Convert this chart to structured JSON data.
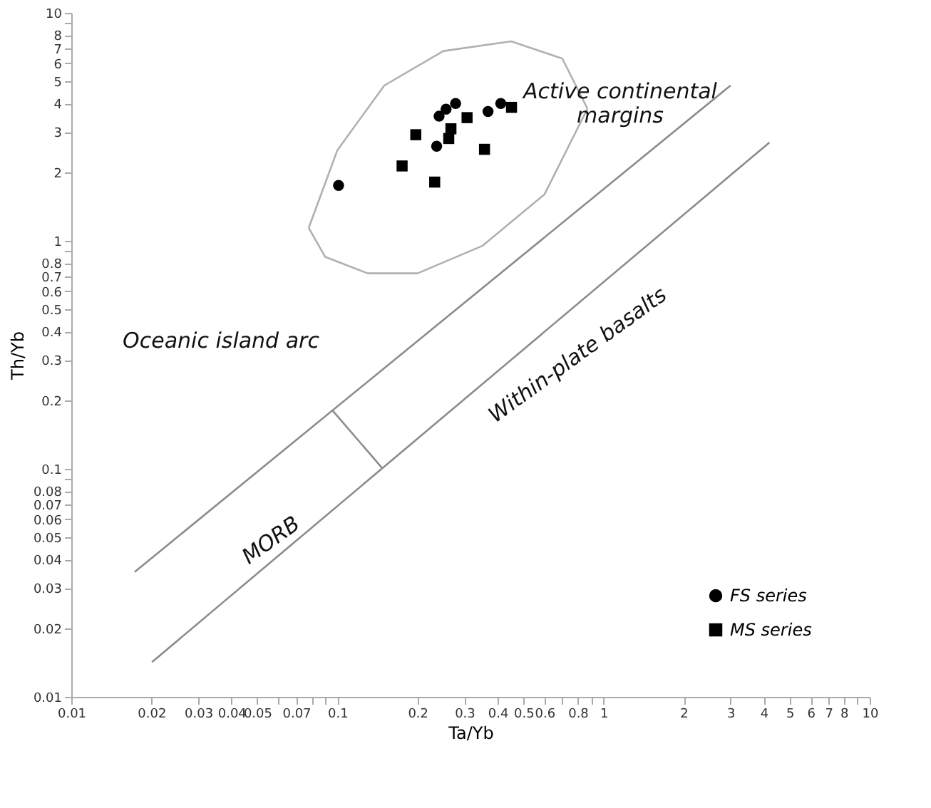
{
  "chart_data": {
    "type": "scatter",
    "xlabel": "Ta/Yb",
    "ylabel": "Th/Yb",
    "xlim": [
      0.01,
      10
    ],
    "ylim": [
      0.01,
      10
    ],
    "log": "xy",
    "grid": false,
    "legend": "bottom right",
    "xticks": [
      0.01,
      0.02,
      0.03,
      0.04,
      0.05,
      {
        "value": 0.06,
        "label": null
      },
      0.07,
      {
        "value": 0.08,
        "label": null
      },
      {
        "value": 0.09,
        "label": null
      },
      0.1,
      0.2,
      0.3,
      0.4,
      0.5,
      0.6,
      {
        "value": 0.7,
        "label": null
      },
      0.8,
      {
        "value": 0.9,
        "label": null
      },
      1,
      2,
      3,
      4,
      5,
      6,
      7,
      8,
      {
        "value": 9,
        "label": null
      },
      10
    ],
    "yticks": [
      0.01,
      0.02,
      0.03,
      0.04,
      0.05,
      0.06,
      0.07,
      0.08,
      {
        "value": 0.09,
        "label": null
      },
      0.1,
      0.2,
      0.3,
      0.4,
      0.5,
      0.6,
      0.7,
      0.8,
      {
        "value": 0.9,
        "label": null
      },
      1,
      2,
      3,
      4,
      5,
      6,
      7,
      8,
      {
        "value": 9,
        "label": null
      },
      10
    ],
    "series": [
      {
        "name": "FS series",
        "type": "scatter",
        "marker": "circle",
        "color": "#000000",
        "x": [
          0.101,
          0.241,
          0.256,
          0.278,
          0.236,
          0.368,
          0.411
        ],
        "values": [
          1.75,
          3.52,
          3.78,
          4.0,
          2.6,
          3.69,
          4.0
        ]
      },
      {
        "name": "MS series",
        "type": "scatter",
        "marker": "square",
        "color": "#000000",
        "x": [
          0.197,
          0.175,
          0.232,
          0.267,
          0.262,
          0.307,
          0.357,
          0.451
        ],
        "values": [
          2.92,
          2.13,
          1.81,
          3.1,
          2.81,
          3.47,
          2.52,
          3.85
        ]
      },
      {
        "type": "line",
        "color": "#8c8c8c",
        "x": [
          0.0173,
          3
        ],
        "values": [
          0.0353,
          4.8
        ]
      },
      {
        "type": "line",
        "color": "#8c8c8c",
        "x": [
          0.0201,
          4.2
        ],
        "values": [
          0.0142,
          2.7
        ]
      },
      {
        "type": "line",
        "color": "#8c8c8c",
        "x": [
          0.096,
          0.147
        ],
        "values": [
          0.18,
          0.101
        ]
      },
      {
        "type": "line",
        "color": "#b0b0b0",
        "x": [
          0.078,
          0.1,
          0.15,
          0.25,
          0.45,
          0.7,
          0.87
        ],
        "values": [
          1.14,
          2.5,
          4.8,
          6.8,
          7.5,
          6.3,
          3.8
        ]
      },
      {
        "type": "line",
        "color": "#b0b0b0",
        "x": [
          0.078,
          0.09,
          0.13,
          0.2,
          0.35,
          0.6,
          0.87
        ],
        "values": [
          1.14,
          0.85,
          0.72,
          0.72,
          0.95,
          1.6,
          3.8
        ]
      }
    ],
    "annotations": [
      "Active continental\nmargins",
      "Oceanic island arc",
      "MORB",
      "Within-plate basalts"
    ]
  }
}
